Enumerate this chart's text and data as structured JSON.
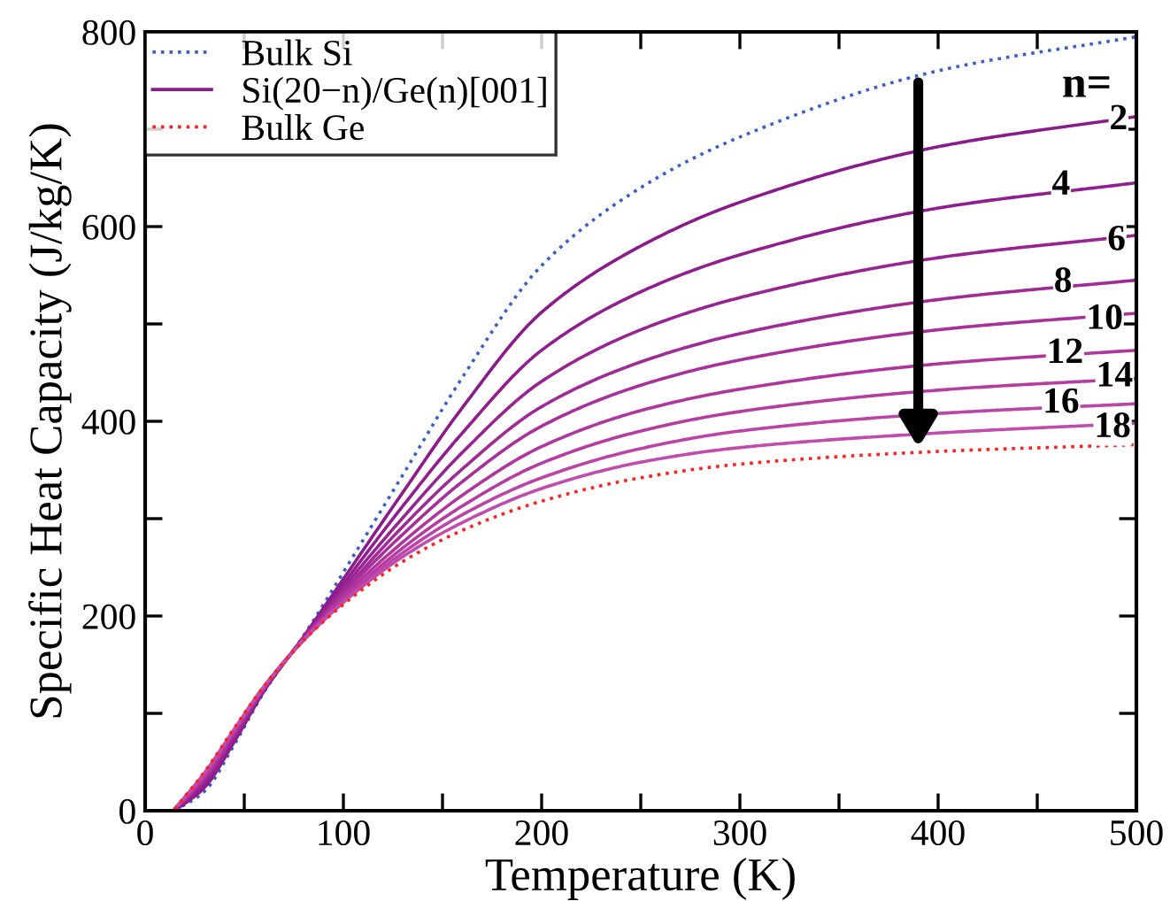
{
  "chart_data": {
    "type": "line",
    "xlabel": "Temperature (K)",
    "ylabel": "Specific Heat Capacity (J/kg/K)",
    "x": [
      15,
      30,
      45,
      60,
      80,
      100,
      130,
      160,
      200,
      250,
      300,
      400,
      500
    ],
    "xlim": [
      0,
      500
    ],
    "ylim": [
      0,
      800
    ],
    "xticks": [
      0,
      {
        "value": 50,
        "label": null
      },
      100,
      {
        "value": 150,
        "label": null
      },
      200,
      {
        "value": 250,
        "label": null
      },
      300,
      {
        "value": 350,
        "label": null
      },
      400,
      {
        "value": 450,
        "label": null
      },
      500
    ],
    "yticks": [
      0,
      {
        "value": 100,
        "label": null
      },
      200,
      {
        "value": 300,
        "label": null
      },
      400,
      {
        "value": 500,
        "label": null
      },
      600,
      {
        "value": 700,
        "label": null
      },
      800
    ],
    "grid": false,
    "legend": "top left",
    "series": [
      {
        "name": "Bulk Si",
        "color": "#3a5fcd",
        "line_style": "dotted",
        "values": [
          0,
          20,
          68,
          122,
          180,
          245,
          345,
          445,
          560,
          640,
          692,
          760,
          795
        ]
      },
      {
        "name": "Si(20−n)/Ge(n)[001]",
        "color": "#8b1a8b",
        "line_style": "solid",
        "values": [
          0,
          24,
          71,
          123,
          179,
          238,
          327,
          414,
          512,
          580,
          625,
          682,
          713
        ]
      },
      {
        "color": "#901e8e",
        "line_style": "solid",
        "values": [
          1,
          27,
          74,
          124,
          178,
          233,
          313,
          388,
          473,
          533,
          571,
          619,
          645
        ]
      },
      {
        "color": "#982491",
        "line_style": "solid",
        "values": [
          1,
          30,
          76,
          125,
          178,
          229,
          301,
          368,
          441,
          494,
          527,
          568,
          591
        ]
      },
      {
        "color": "#a02a96",
        "line_style": "solid",
        "values": [
          1,
          32,
          78,
          126,
          177,
          225,
          292,
          351,
          415,
          461,
          490,
          525,
          545
        ]
      },
      {
        "color": "#a8309a",
        "line_style": "solid",
        "values": [
          1,
          34,
          80,
          126,
          177,
          223,
          284,
          338,
          395,
          437,
          463,
          494,
          511
        ]
      },
      {
        "color": "#b0369e",
        "line_style": "solid",
        "values": [
          2,
          35,
          81,
          127,
          176,
          220,
          276,
          324,
          374,
          411,
          433,
          459,
          473
        ]
      },
      {
        "color": "#b63ca2",
        "line_style": "solid",
        "values": [
          2,
          37,
          82,
          127,
          176,
          217,
          270,
          313,
          357,
          390,
          410,
          432,
          444
        ]
      },
      {
        "color": "#bc44a8",
        "line_style": "solid",
        "values": [
          2,
          38,
          83,
          127,
          176,
          215,
          265,
          304,
          342,
          372,
          390,
          408,
          418
        ]
      },
      {
        "color": "#c24cae",
        "line_style": "solid",
        "values": [
          2,
          39,
          84,
          128,
          175,
          214,
          261,
          296,
          331,
          358,
          373,
          388,
          398
        ]
      },
      {
        "name": "Bulk Ge",
        "color": "#ff2020",
        "line_style": "dotted",
        "values": [
          2,
          40,
          85,
          128,
          175,
          212,
          256,
          288,
          318,
          342,
          356,
          369,
          376
        ]
      }
    ],
    "annotations": [
      "n=",
      {
        "text": "2",
        "x": 491,
        "y": 709
      },
      {
        "text": "4",
        "x": 462,
        "y": 642
      },
      {
        "text": "6",
        "x": 490,
        "y": 585
      },
      {
        "text": "8",
        "x": 463,
        "y": 542
      },
      {
        "text": "10",
        "x": 484,
        "y": 504
      },
      {
        "text": "12",
        "x": 464,
        "y": 469
      },
      {
        "text": "14",
        "x": 489,
        "y": 445
      },
      {
        "text": "16",
        "x": 462,
        "y": 418
      },
      {
        "text": "18",
        "x": 488,
        "y": 393
      }
    ]
  }
}
